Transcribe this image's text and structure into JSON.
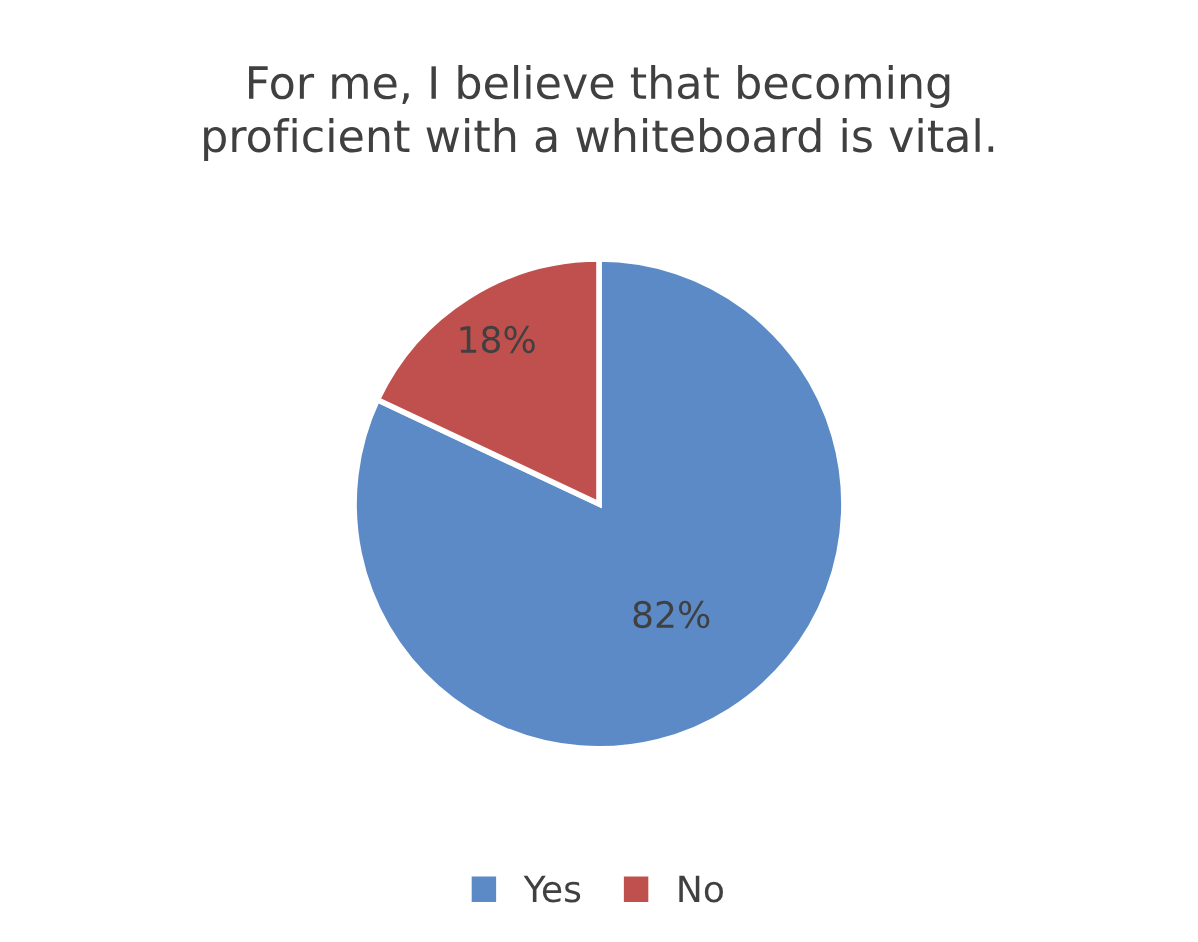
{
  "chart_data": {
    "type": "pie",
    "title": "For me, I believe that becoming\nproficient with a whiteboard is vital.",
    "categories": [
      "Yes",
      "No"
    ],
    "values": [
      82,
      18
    ],
    "colors": [
      "#5b8ac6",
      "#c0504d"
    ],
    "value_labels": [
      "82%",
      "18%"
    ],
    "legend": "bottom"
  }
}
